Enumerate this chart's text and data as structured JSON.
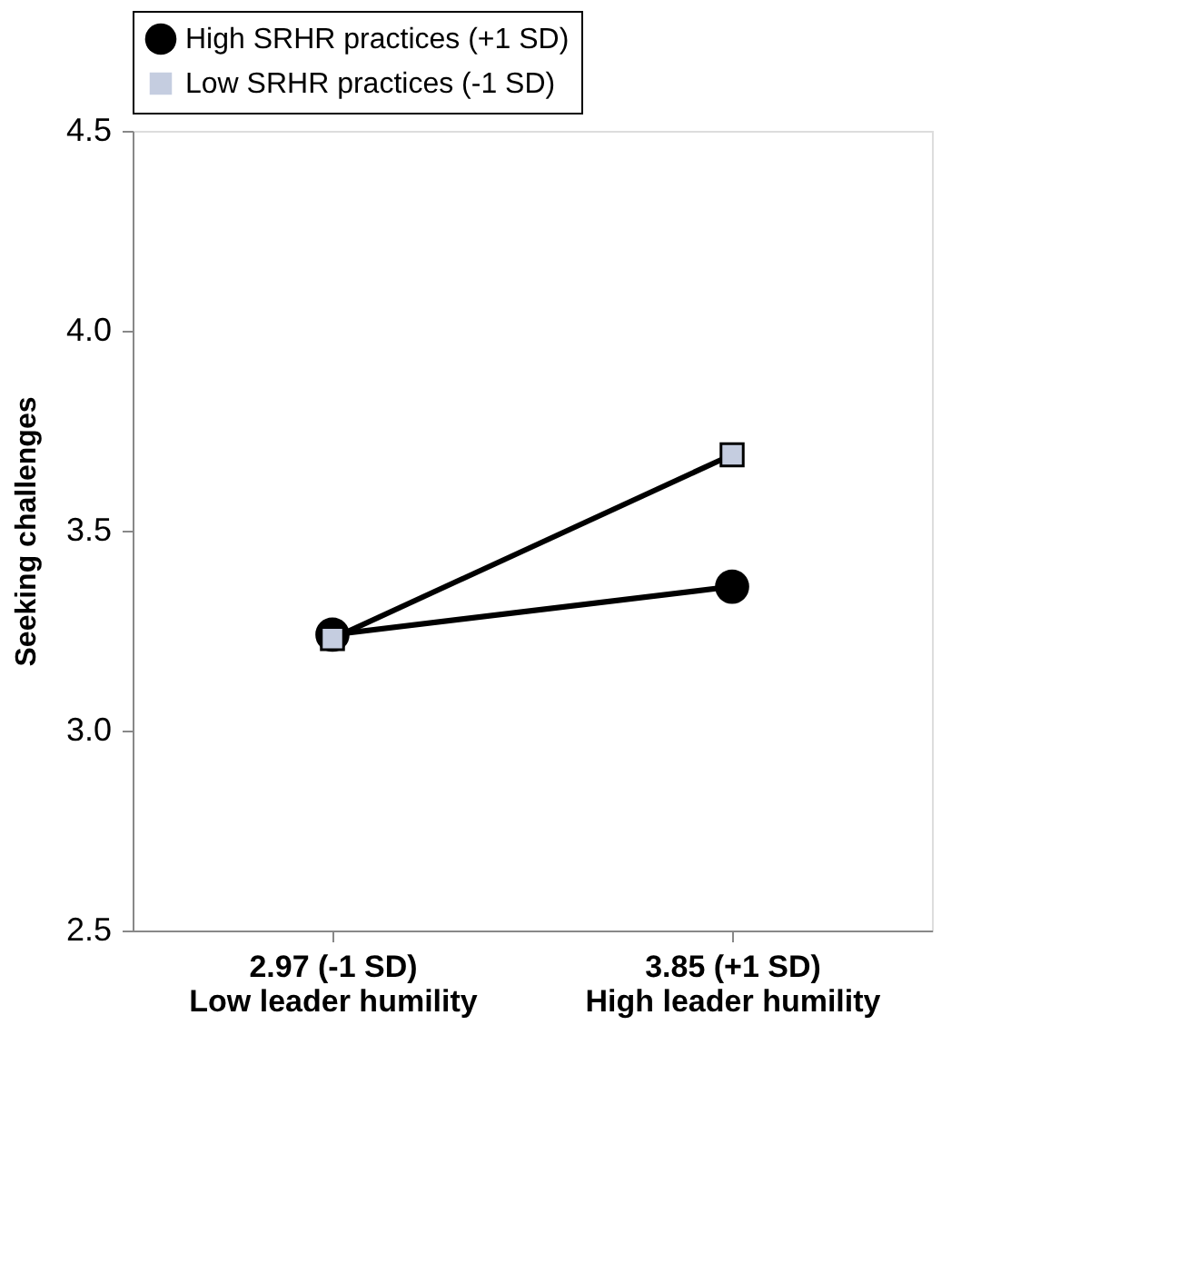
{
  "chart_data": {
    "type": "line",
    "ylabel": "Seeking challenges",
    "categories": [
      "2.97 (-1 SD)\nLow leader humility",
      "3.85 (+1 SD)\nHigh leader humility"
    ],
    "series": [
      {
        "name": "High SRHR practices (+1 SD)",
        "color": "#000000",
        "marker": "circle",
        "line_style": "solid",
        "values": [
          3.24,
          3.36
        ]
      },
      {
        "name": "Low SRHR practices (-1 SD)",
        "color": "#c5cde0",
        "marker": "square",
        "line_style": "solid",
        "values": [
          3.23,
          3.69
        ]
      }
    ],
    "ylim": [
      2.5,
      4.5
    ],
    "yticks": [
      2.5,
      {
        "value": 3,
        "label": "3.0"
      },
      3.5,
      {
        "value": 4,
        "label": "4.0"
      },
      4.5
    ],
    "grid": false,
    "legend": "top"
  }
}
